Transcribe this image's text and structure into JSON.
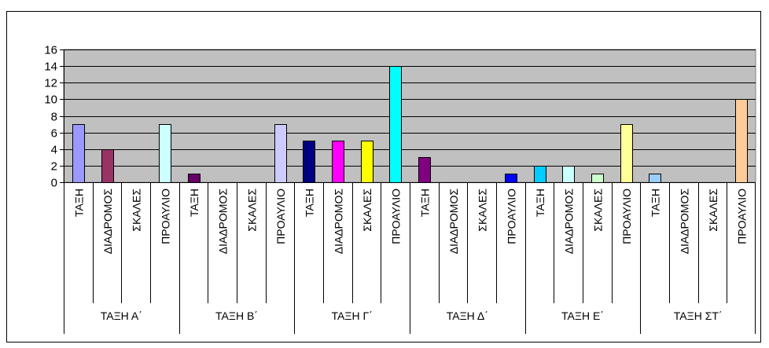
{
  "chart_data": {
    "type": "bar",
    "title": "",
    "xlabel": "",
    "ylabel": "",
    "ylim": [
      0,
      16
    ],
    "yticks": [
      0,
      2,
      4,
      6,
      8,
      10,
      12,
      14,
      16
    ],
    "grid": true,
    "legend": "none",
    "plot_background": "#c0c0c0",
    "groups": [
      {
        "label": "ΤΑΞΗ Α΄",
        "bars": [
          {
            "label": "ΤΑΞΗ",
            "value": 7,
            "color": "#9999ff"
          },
          {
            "label": "ΔΙΑΔΡΟΜΟΣ",
            "value": 4,
            "color": "#993366"
          },
          {
            "label": "ΣΚΑΛΕΣ",
            "value": 0,
            "color": "#ffffcc"
          },
          {
            "label": "ΠΡΟΑΥΛΙΟ",
            "value": 7,
            "color": "#ccffff"
          }
        ]
      },
      {
        "label": "ΤΑΞΗ Β΄",
        "bars": [
          {
            "label": "ΤΑΞΗ",
            "value": 1,
            "color": "#660066"
          },
          {
            "label": "ΔΙΑΔΡΟΜΟΣ",
            "value": 0,
            "color": "#ff8080"
          },
          {
            "label": "ΣΚΑΛΕΣ",
            "value": 0,
            "color": "#0066cc"
          },
          {
            "label": "ΠΡΟΑΥΛΙΟ",
            "value": 7,
            "color": "#ccccff"
          }
        ]
      },
      {
        "label": "ΤΑΞΗ Γ΄",
        "bars": [
          {
            "label": "ΤΑΞΗ",
            "value": 5,
            "color": "#000080"
          },
          {
            "label": "ΔΙΑΔΡΟΜΟΣ",
            "value": 5,
            "color": "#ff00ff"
          },
          {
            "label": "ΣΚΑΛΕΣ",
            "value": 5,
            "color": "#ffff00"
          },
          {
            "label": "ΠΡΟΑΥΛΙΟ",
            "value": 14,
            "color": "#00ffff"
          }
        ]
      },
      {
        "label": "ΤΑΞΗ Δ΄",
        "bars": [
          {
            "label": "ΤΑΞΗ",
            "value": 3,
            "color": "#800080"
          },
          {
            "label": "ΔΙΑΔΡΟΜΟΣ",
            "value": 0,
            "color": "#800000"
          },
          {
            "label": "ΣΚΑΛΕΣ",
            "value": 0,
            "color": "#008080"
          },
          {
            "label": "ΠΡΟΑΥΛΙΟ",
            "value": 1,
            "color": "#0000ff"
          }
        ]
      },
      {
        "label": "ΤΑΞΗ Ε΄",
        "bars": [
          {
            "label": "ΤΑΞΗ",
            "value": 2,
            "color": "#00ccff"
          },
          {
            "label": "ΔΙΑΔΡΟΜΟΣ",
            "value": 2,
            "color": "#ccffff"
          },
          {
            "label": "ΣΚΑΛΕΣ",
            "value": 1,
            "color": "#ccffcc"
          },
          {
            "label": "ΠΡΟΑΥΛΙΟ",
            "value": 7,
            "color": "#ffff99"
          }
        ]
      },
      {
        "label": "ΤΑΞΗ ΣΤ΄",
        "bars": [
          {
            "label": "ΤΑΞΗ",
            "value": 1,
            "color": "#99ccff"
          },
          {
            "label": "ΔΙΑΔΡΟΜΟΣ",
            "value": 0,
            "color": "#ff99cc"
          },
          {
            "label": "ΣΚΑΛΕΣ",
            "value": 0,
            "color": "#cc99ff"
          },
          {
            "label": "ΠΡΟΑΥΛΙΟ",
            "value": 10,
            "color": "#ffcc99"
          }
        ]
      }
    ]
  }
}
